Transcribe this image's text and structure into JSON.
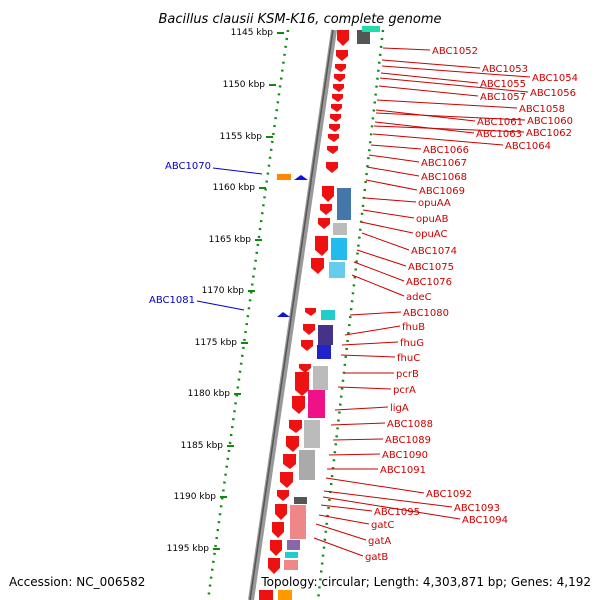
{
  "title": "Bacillus clausii KSM-K16, complete genome",
  "accession": "Accession: NC_006582",
  "topology": "Topology: circular; Length: 4,303,871 bp; Genes: 4,192",
  "colors": {
    "gene_arrow": "#ee1111",
    "label_red": "#cc0000",
    "label_blue": "#0000cc",
    "backbone": "#888888",
    "tick_green": "#118811"
  },
  "scale_labels": [
    "1145 kbp",
    "1150 kbp",
    "1155 kbp",
    "1160 kbp",
    "1165 kbp",
    "1170 kbp",
    "1175 kbp",
    "1180 kbp",
    "1185 kbp",
    "1190 kbp",
    "1195 kbp"
  ],
  "right_labels": [
    "ABC1052",
    "ABC1053",
    "ABC1054",
    "ABC1055",
    "ABC1056",
    "ABC1057",
    "ABC1058",
    "ABC1061",
    "ABC1060",
    "ABC1063",
    "ABC1062",
    "ABC1064",
    "ABC1066",
    "ABC1067",
    "ABC1068",
    "ABC1069",
    "opuAA",
    "opuAB",
    "opuAC",
    "ABC1074",
    "ABC1075",
    "ABC1076",
    "adeC",
    "ABC1080",
    "fhuB",
    "fhuG",
    "fhuC",
    "pcrB",
    "pcrA",
    "ligA",
    "ABC1088",
    "ABC1089",
    "ABC1090",
    "ABC1091",
    "ABC1092",
    "ABC1093",
    "ABC1094",
    "ABC1095",
    "gatC",
    "gatA",
    "gatB"
  ],
  "left_labels": [
    "ABC1070",
    "ABC1081"
  ]
}
